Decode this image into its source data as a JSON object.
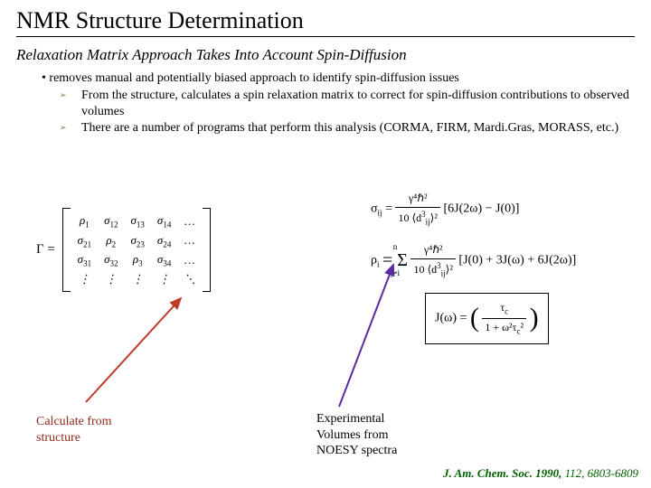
{
  "title": "NMR Structure Determination",
  "subtitle": "Relaxation Matrix Approach Takes Into Account Spin-Diffusion",
  "bullet1": "• removes manual and potentially biased approach to identify spin-diffusion issues",
  "sub1": "From the structure, calculates a spin relaxation matrix to correct for spin-diffusion contributions to observed volumes",
  "sub2": "There are a number of programs that perform this analysis (CORMA, FIRM, Mardi.Gras, MORASS, etc.)",
  "matrix": {
    "lhs": "Γ =",
    "cells": [
      [
        "ρ",
        "1",
        "σ",
        "12",
        "σ",
        "13",
        "σ",
        "14",
        "…"
      ],
      [
        "σ",
        "21",
        "ρ",
        "2",
        "σ",
        "23",
        "σ",
        "24",
        "…"
      ],
      [
        "σ",
        "31",
        "σ",
        "32",
        "ρ",
        "3",
        "σ",
        "34",
        "…"
      ],
      [
        "⋮",
        "",
        "⋮",
        "",
        "⋮",
        "",
        "⋮",
        "",
        "⋱"
      ]
    ]
  },
  "eq_sigma_lhs": "σ",
  "eq_sigma_sub": "ij",
  "eq_sigma_frac_num": "γ⁴ℏ²",
  "eq_sigma_frac_den_a": "10 ⟨d",
  "eq_sigma_frac_den_b": "ij",
  "eq_sigma_frac_den_c": "⟩²",
  "eq_sigma_rhs": "[6J(2ω) − J(0)]",
  "eq_rho_lhs": "ρ",
  "eq_rho_sub": "i",
  "eq_rho_sum": "= Σ",
  "eq_rho_sum_top": "n",
  "eq_rho_sum_bot": "j≠i",
  "eq_rho_frac_num": "γ⁴ℏ²",
  "eq_rho_frac_den_a": "10 ⟨d",
  "eq_rho_frac_den_b": "ij",
  "eq_rho_frac_den_c": "⟩²",
  "eq_rho_rhs": "[J(0) + 3J(ω) + 6J(2ω)]",
  "eq_J_lhs": "J(ω) =",
  "eq_J_frac_num": "τ",
  "eq_J_frac_num_sub": "c",
  "eq_J_frac_den_a": "1 + ω²τ",
  "eq_J_frac_den_sub": "c",
  "eq_J_frac_den_b": "²",
  "annot_left_l1": "Calculate from",
  "annot_left_l2": "structure",
  "annot_right_l1": "Experimental",
  "annot_right_l2": "Volumes from",
  "annot_right_l3": "NOESY spectra",
  "citation_journal": "J. Am. Chem. Soc.",
  "citation_year": " 1990, ",
  "citation_vol": "112,",
  "citation_pages": " 6803-6809",
  "arrow_colors": {
    "red": "#c0392b",
    "purple": "#5a2aa0"
  }
}
